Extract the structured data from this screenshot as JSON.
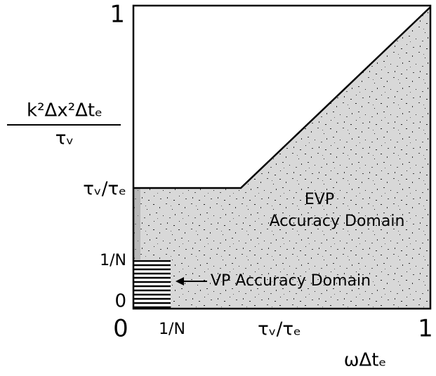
{
  "y_axis": {
    "label_numerator": "k²Δx²Δtₑ",
    "label_denominator": "τᵥ",
    "ticks": [
      "1",
      "τᵥ/τₑ",
      "1/N",
      "0"
    ]
  },
  "x_axis": {
    "label": "ωΔtₑ",
    "ticks": [
      "0",
      "1/N",
      "τᵥ/τₑ",
      "1"
    ]
  },
  "regions": {
    "evp_line1": "EVP",
    "evp_line2": "Accuracy Domain",
    "vp": "VP Accuracy Domain"
  }
}
